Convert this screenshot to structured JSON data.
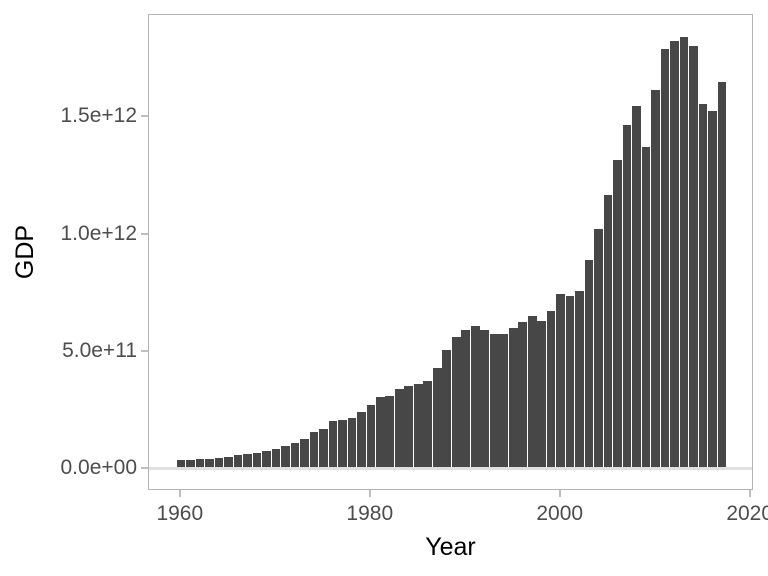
{
  "chart_data": {
    "type": "bar",
    "title": "",
    "xlabel": "Year",
    "ylabel": "GDP",
    "legend": "none",
    "grid": "off",
    "xlim": [
      1956.65,
      2020.35
    ],
    "ylim": [
      -92130000000.0,
      1934760000000.0
    ],
    "bar_width_fraction": 0.9,
    "x_ticks": [
      {
        "value": 1960,
        "label": "1960"
      },
      {
        "value": 1980,
        "label": "1980"
      },
      {
        "value": 2000,
        "label": "2000"
      },
      {
        "value": 2020,
        "label": "2020"
      }
    ],
    "y_ticks": [
      {
        "value": 0,
        "label": "0.0e+00"
      },
      {
        "value": 500000000000.0,
        "label": "5.0e+11"
      },
      {
        "value": 1000000000000.0,
        "label": "1.0e+12"
      },
      {
        "value": 1500000000000.0,
        "label": "1.5e+12"
      }
    ],
    "categories": [
      1960,
      1961,
      1962,
      1963,
      1964,
      1965,
      1966,
      1967,
      1968,
      1969,
      1970,
      1971,
      1972,
      1973,
      1974,
      1975,
      1976,
      1977,
      1978,
      1979,
      1980,
      1981,
      1982,
      1983,
      1984,
      1985,
      1986,
      1987,
      1988,
      1989,
      1990,
      1991,
      1992,
      1993,
      1994,
      1995,
      1996,
      1997,
      1998,
      1999,
      2000,
      2001,
      2002,
      2003,
      2004,
      2005,
      2006,
      2007,
      2008,
      2009,
      2010,
      2011,
      2012,
      2013,
      2014,
      2015,
      2016,
      2017
    ],
    "values": [
      40460000000.0,
      40930000000.0,
      42230000000.0,
      44690000000.0,
      48920000000.0,
      53910000000.0,
      60360000000.0,
      64650000000.0,
      70760000000.0,
      77990000000.0,
      87900000000.0,
      99270000000.0,
      113080000000.0,
      131320000000.0,
      160410000000.0,
      173830000000.0,
      206580000000.0,
      211600000000.0,
      218590000000.0,
      243070000000.0,
      273850000000.0,
      306210000000.0,
      313510000000.0,
      340470000000.0,
      355370000000.0,
      364760000000.0,
      377320000000.0,
      431170000000.0,
      507350000000.0,
      565100000000.0,
      593930000000.0,
      610330000000.0,
      592390000000.0,
      577170000000.0,
      578140000000.0,
      604030000000.0,
      628550000000.0,
      652830000000.0,
      631810000000.0,
      676080000000.0,
      744770000000.0,
      736380000000.0,
      757950000000.0,
      892380000000.0,
      1023200000000.0,
      1169360000000.0,
      1315420000000.0,
      1464980000000.0,
      1549130000000.0,
      1371150000000.0,
      1613460000000.0,
      1788650000000.0,
      1824290000000.0,
      1842630000000.0,
      1801480000000.0,
      1556510000000.0,
      1527990000000.0,
      1649270000000.0
    ],
    "colors": {
      "bar": "#474747",
      "panel_border": "#b4b4b4",
      "zero_line": "#e0e0e0",
      "tick": "#bebebe",
      "tick_label": "#4d4d4d",
      "axis_title": "#000000",
      "background": "#ffffff"
    }
  }
}
